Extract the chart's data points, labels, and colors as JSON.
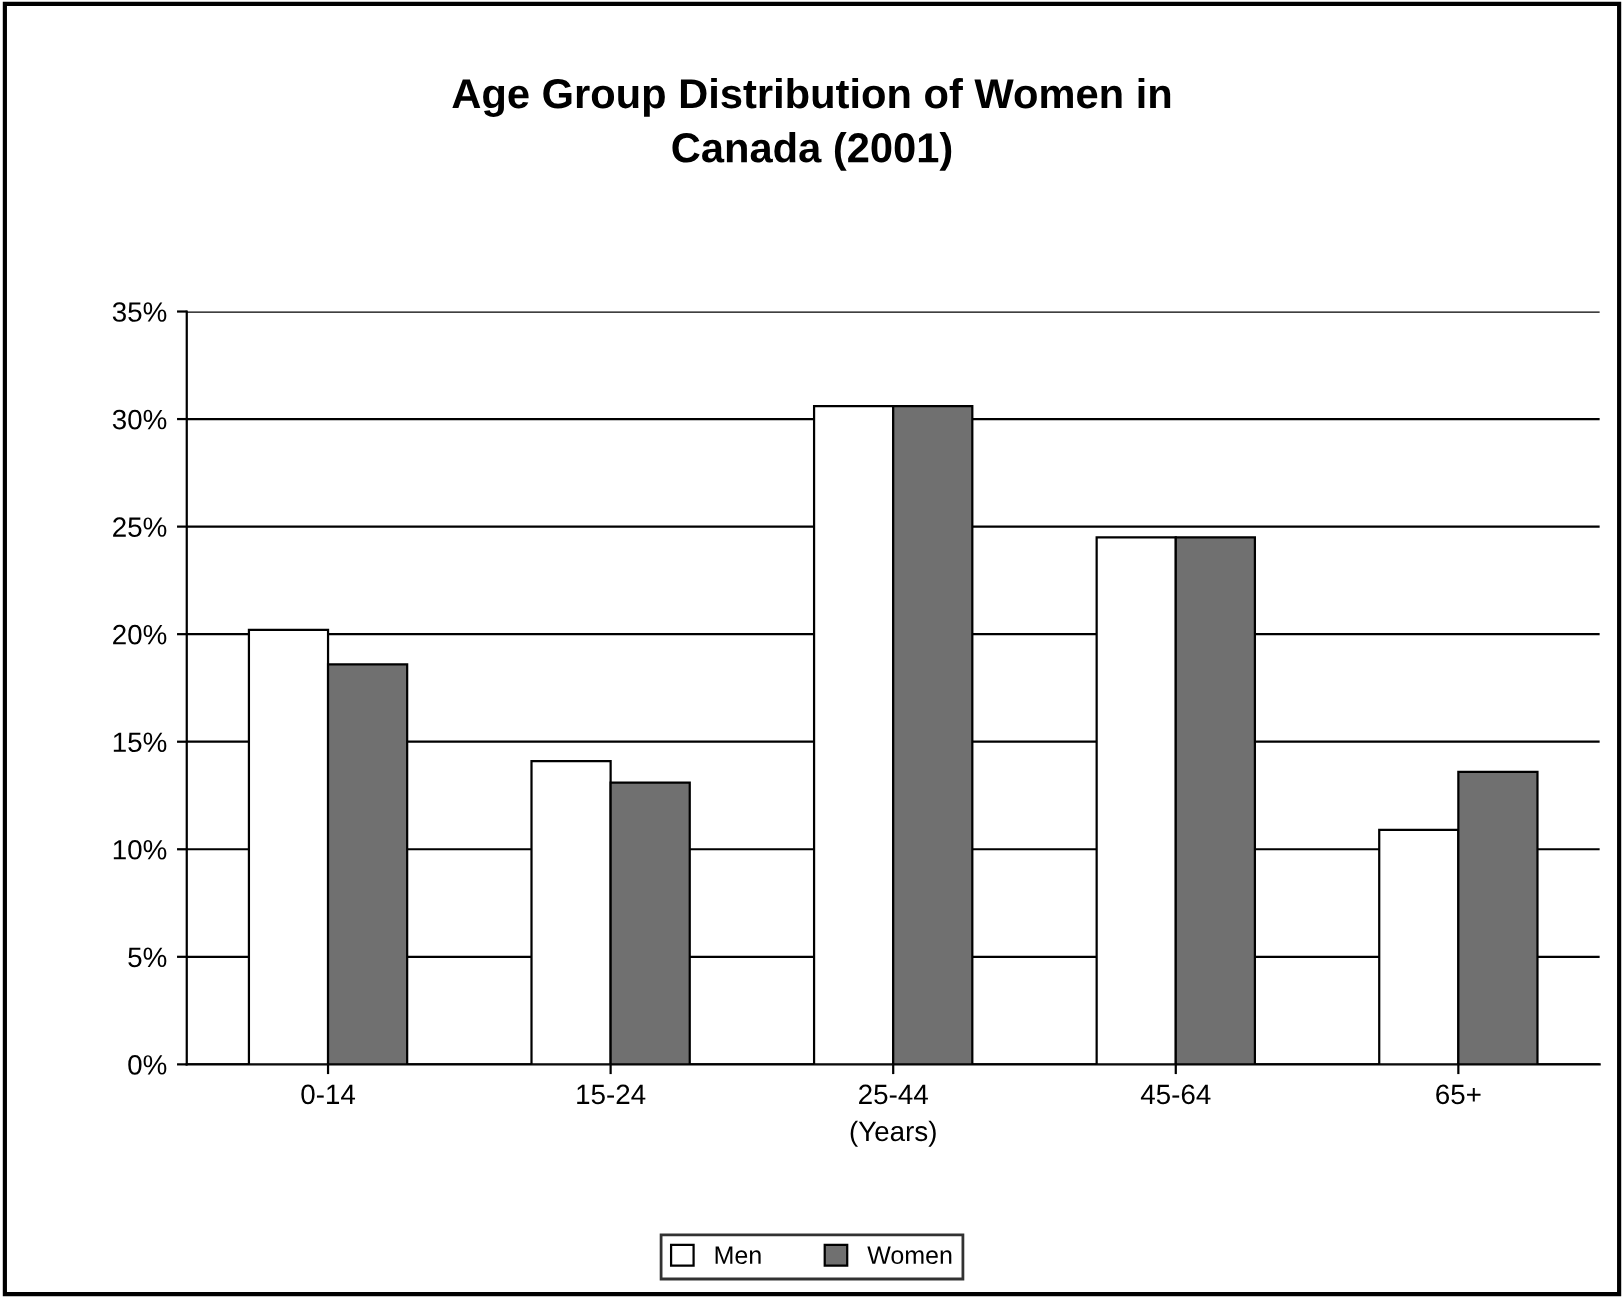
{
  "chart_data": {
    "type": "bar",
    "title": "Age Group Distribution of Women in\nCanada (2001)",
    "xlabel": "(Years)",
    "categories": [
      "0-14",
      "15-24",
      "25-44",
      "45-64",
      "65+"
    ],
    "series": [
      {
        "name": "Men",
        "color": "#ffffff",
        "values": [
          20.2,
          14.1,
          30.6,
          24.5,
          10.9
        ]
      },
      {
        "name": "Women",
        "color": "#707070",
        "values": [
          18.6,
          13.1,
          30.6,
          24.5,
          13.6
        ]
      }
    ],
    "ylim": [
      0,
      35
    ],
    "yticks": [
      {
        "value": 0,
        "label": "0%"
      },
      {
        "value": 5,
        "label": "5%"
      },
      {
        "value": 10,
        "label": "10%"
      },
      {
        "value": 15,
        "label": "15%"
      },
      {
        "value": 20,
        "label": "20%"
      },
      {
        "value": 25,
        "label": "25%"
      },
      {
        "value": 30,
        "label": "30%"
      },
      {
        "value": 35,
        "label": "35%"
      }
    ],
    "grid": "y",
    "legend": "bottom"
  }
}
